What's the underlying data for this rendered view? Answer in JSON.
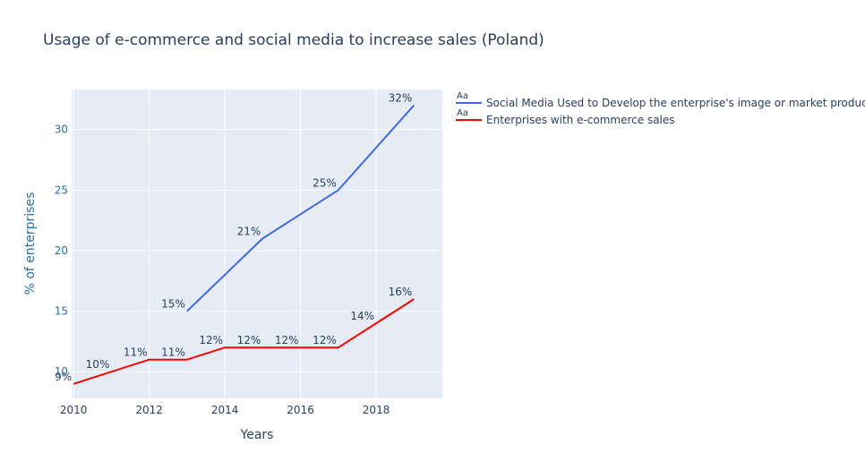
{
  "chart_data": {
    "type": "line",
    "title": "Usage of e-commerce and social media to increase sales (Poland)",
    "xlabel": "Years",
    "ylabel": "% of enterprises",
    "xlim": [
      2009.95,
      2019.75
    ],
    "ylim": [
      7.8,
      33.3
    ],
    "x_ticks": [
      2010,
      2012,
      2014,
      2016,
      2018
    ],
    "y_ticks": [
      10,
      15,
      20,
      25,
      30
    ],
    "grid": true,
    "legend": "right",
    "legend_marker": "Aa",
    "plot_bg": "#e5ecf6",
    "series": [
      {
        "name": "Social Media Used to Develop the enterprise's image or market products",
        "color": "#4169e1",
        "x": [
          2013,
          2015,
          2017,
          2019
        ],
        "values": [
          15,
          21,
          25,
          32
        ],
        "labels": [
          "15%",
          "21%",
          "25%",
          "32%"
        ]
      },
      {
        "name": "Enterprises with e-commerce sales",
        "color": "#ff0000",
        "x": [
          2010,
          2011,
          2012,
          2013,
          2014,
          2015,
          2016,
          2017,
          2018,
          2019
        ],
        "values": [
          9,
          10,
          11,
          11,
          12,
          12,
          12,
          12,
          14,
          16
        ],
        "labels": [
          "9%",
          "10%",
          "11%",
          "11%",
          "12%",
          "12%",
          "12%",
          "12%",
          "14%",
          "16%"
        ]
      }
    ]
  }
}
